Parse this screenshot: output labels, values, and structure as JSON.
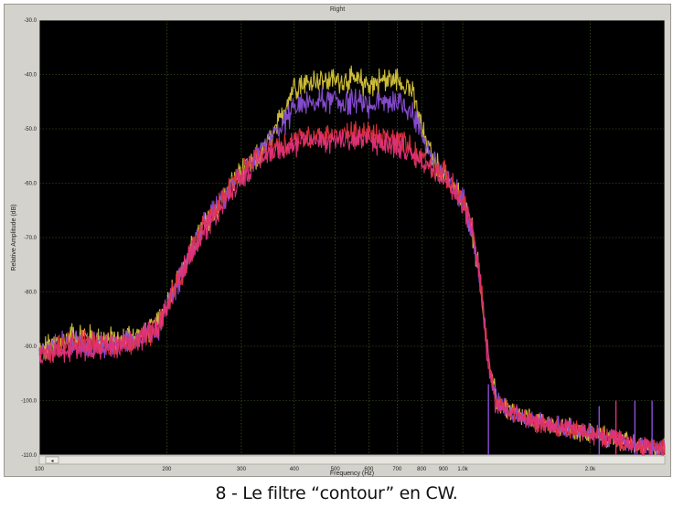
{
  "window": {
    "title": "Right"
  },
  "caption": "8 - Le filtre “contour” en CW.",
  "colors": {
    "plot_background": "#000000",
    "grid": "#4d6b2a",
    "frame": "#cfcdc6"
  },
  "chart_data": {
    "type": "line",
    "title": "",
    "xlabel": "Frequency (Hz)",
    "ylabel": "Relative Amplitude (dB)",
    "x_scale": "log",
    "xlim": [
      100,
      3000
    ],
    "ylim": [
      -110,
      -30
    ],
    "x_ticks": [
      {
        "value": 100,
        "label": "100"
      },
      {
        "value": 200,
        "label": "200"
      },
      {
        "value": 300,
        "label": "300"
      },
      {
        "value": 400,
        "label": "400"
      },
      {
        "value": 500,
        "label": "500"
      },
      {
        "value": 600,
        "label": "600"
      },
      {
        "value": 700,
        "label": "700"
      },
      {
        "value": 800,
        "label": "800"
      },
      {
        "value": 900,
        "label": "900"
      },
      {
        "value": 1000,
        "label": "1.0k"
      },
      {
        "value": 2000,
        "label": "2.0k"
      }
    ],
    "y_ticks": [
      {
        "value": -30,
        "label": "-30.0"
      },
      {
        "value": -40,
        "label": "-40.0"
      },
      {
        "value": -50,
        "label": "-50.0"
      },
      {
        "value": -60,
        "label": "-60.0"
      },
      {
        "value": -70,
        "label": "-70.0"
      },
      {
        "value": -80,
        "label": "-80.0"
      },
      {
        "value": -90,
        "label": "-90.0"
      },
      {
        "value": -100,
        "label": "-100.0"
      },
      {
        "value": -110,
        "label": "-110.0"
      }
    ],
    "grid": true,
    "noise_db": 1.8,
    "series": [
      {
        "color": "#d6c43a",
        "x": [
          100,
          120,
          150,
          170,
          190,
          210,
          240,
          270,
          300,
          330,
          360,
          380,
          400,
          450,
          500,
          550,
          600,
          650,
          700,
          740,
          760,
          800,
          850,
          900,
          950,
          1000,
          1050,
          1100,
          1150,
          1200,
          1300,
          1500,
          2000,
          2500,
          3000
        ],
        "y": [
          -91,
          -88,
          -89,
          -88,
          -86,
          -78,
          -69,
          -63,
          -58,
          -55,
          -51,
          -46,
          -42,
          -41,
          -41,
          -41,
          -42,
          -41,
          -41,
          -42,
          -43,
          -50,
          -56,
          -58,
          -61,
          -63,
          -68,
          -78,
          -93,
          -100,
          -102,
          -104,
          -106,
          -108,
          -109
        ]
      },
      {
        "color": "#8b4fd6",
        "x": [
          100,
          120,
          150,
          170,
          190,
          210,
          240,
          270,
          300,
          330,
          360,
          380,
          400,
          450,
          500,
          550,
          600,
          650,
          700,
          740,
          760,
          800,
          850,
          900,
          950,
          1000,
          1050,
          1100,
          1150,
          1200,
          1300,
          1500,
          2000,
          2500,
          3000
        ],
        "y": [
          -91,
          -89,
          -90,
          -88,
          -87,
          -79,
          -69,
          -63,
          -58,
          -55,
          -51,
          -49,
          -46,
          -45,
          -45,
          -45,
          -46,
          -45,
          -45,
          -46,
          -47,
          -51,
          -56,
          -58,
          -61,
          -63,
          -68,
          -78,
          -93,
          -100,
          -102,
          -104,
          -106,
          -108,
          -109
        ]
      },
      {
        "color": "#e0303a",
        "x": [
          100,
          120,
          150,
          170,
          190,
          210,
          240,
          270,
          300,
          330,
          360,
          380,
          400,
          450,
          500,
          550,
          600,
          650,
          700,
          740,
          760,
          800,
          850,
          900,
          950,
          1000,
          1050,
          1100,
          1150,
          1200,
          1300,
          1500,
          2000,
          2500,
          3000
        ],
        "y": [
          -92,
          -89,
          -90,
          -89,
          -87,
          -79,
          -69,
          -63,
          -58,
          -55,
          -53,
          -53,
          -52,
          -51,
          -51,
          -51,
          -51,
          -52,
          -52,
          -53,
          -54,
          -55,
          -57,
          -58,
          -61,
          -63,
          -68,
          -78,
          -93,
          -100,
          -102,
          -104,
          -106,
          -108,
          -109
        ]
      },
      {
        "color": "#e0337a",
        "x": [
          100,
          120,
          150,
          170,
          190,
          210,
          240,
          270,
          300,
          330,
          360,
          380,
          400,
          450,
          500,
          550,
          600,
          650,
          700,
          740,
          760,
          800,
          850,
          900,
          950,
          1000,
          1050,
          1100,
          1150,
          1200,
          1300,
          1500,
          2000,
          2500,
          3000
        ],
        "y": [
          -92,
          -90,
          -90,
          -89,
          -87,
          -79,
          -70,
          -64,
          -59,
          -56,
          -54,
          -53,
          -53,
          -52,
          -52,
          -52,
          -52,
          -53,
          -53,
          -54,
          -55,
          -56,
          -57,
          -59,
          -61,
          -64,
          -68,
          -78,
          -93,
          -101,
          -102,
          -104,
          -106,
          -108,
          -109
        ]
      }
    ],
    "spikes": [
      {
        "x": 1150,
        "y": -97,
        "color": "#8b4fd6"
      },
      {
        "x": 2100,
        "y": -101,
        "color": "#8b4fd6"
      },
      {
        "x": 2300,
        "y": -100,
        "color": "#e0337a"
      },
      {
        "x": 2550,
        "y": -100,
        "color": "#8b4fd6"
      },
      {
        "x": 2800,
        "y": -100,
        "color": "#8b4fd6"
      }
    ]
  }
}
